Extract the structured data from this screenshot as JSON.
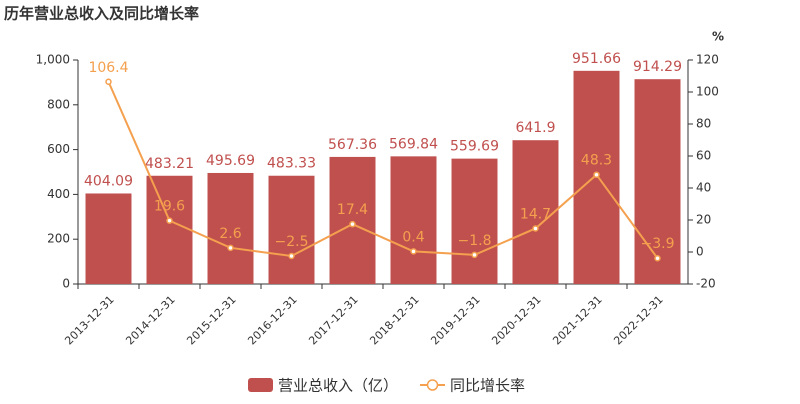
{
  "chart_data": {
    "type": "bar-line",
    "title": "历年营业总收入及同比增长率",
    "y2_label": "%",
    "categories": [
      "2013-12-31",
      "2014-12-31",
      "2015-12-31",
      "2016-12-31",
      "2017-12-31",
      "2018-12-31",
      "2019-12-31",
      "2020-12-31",
      "2021-12-31",
      "2022-12-31"
    ],
    "series": [
      {
        "name": "营业总收入（亿）",
        "type": "bar",
        "axis": "y",
        "color": "#c0504e",
        "values": [
          404.09,
          483.21,
          495.69,
          483.33,
          567.36,
          569.84,
          559.69,
          641.9,
          951.66,
          914.29
        ]
      },
      {
        "name": "同比增长率",
        "type": "line",
        "axis": "y2",
        "color": "#f4a04e",
        "values": [
          106.4,
          19.6,
          2.6,
          -2.5,
          17.4,
          0.4,
          -1.8,
          14.7,
          48.3,
          -3.9
        ],
        "value_labels": [
          "106.4",
          "19.6",
          "2.6",
          "−2.5",
          "17.4",
          "0.4",
          "−1.8",
          "14.7",
          "48.3",
          "−3.9"
        ]
      }
    ],
    "ylim": [
      0,
      1000
    ],
    "yticks": [
      0,
      200,
      400,
      600,
      800,
      {
        "value": 1000,
        "label": "1,000"
      }
    ],
    "y2lim": [
      -20,
      120
    ],
    "y2ticks": [
      -20,
      0,
      20,
      40,
      60,
      80,
      100,
      120
    ],
    "legend": "bottom"
  }
}
